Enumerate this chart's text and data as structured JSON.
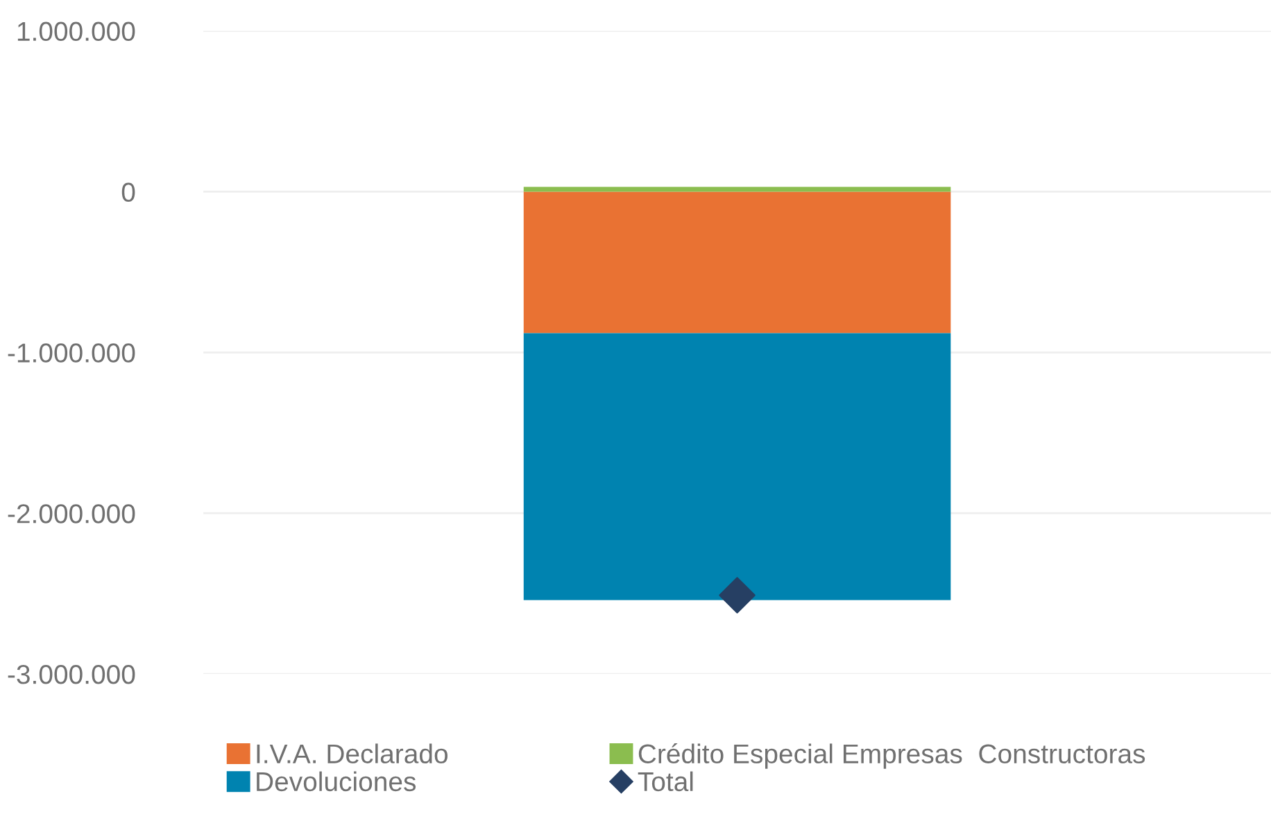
{
  "chart_data": {
    "type": "bar",
    "stacked": true,
    "categories": [
      null
    ],
    "series": [
      {
        "name": "I.V.A. Declarado",
        "color": "#e97233",
        "values": [
          -880000
        ]
      },
      {
        "name": "Devoluciones",
        "color": "#0083b0",
        "values": [
          -1660000
        ]
      },
      {
        "name": "Crédito Especial Empresas  Constructoras",
        "color": "#8bbd4f",
        "values": [
          30000
        ]
      },
      {
        "name": "Total",
        "type": "scatter",
        "marker": "diamond",
        "color": "#263f63",
        "values": [
          -2510000
        ]
      }
    ],
    "ylim": [
      -3000000,
      1000000
    ],
    "yticks": [
      {
        "value": 1000000,
        "label": "1.000.000"
      },
      0,
      {
        "value": -1000000,
        "label": "-1.000.000"
      },
      {
        "value": -2000000,
        "label": "-2.000.000"
      },
      {
        "value": -3000000,
        "label": "-3.000.000"
      }
    ],
    "grid": "y",
    "legend": "bottom"
  }
}
